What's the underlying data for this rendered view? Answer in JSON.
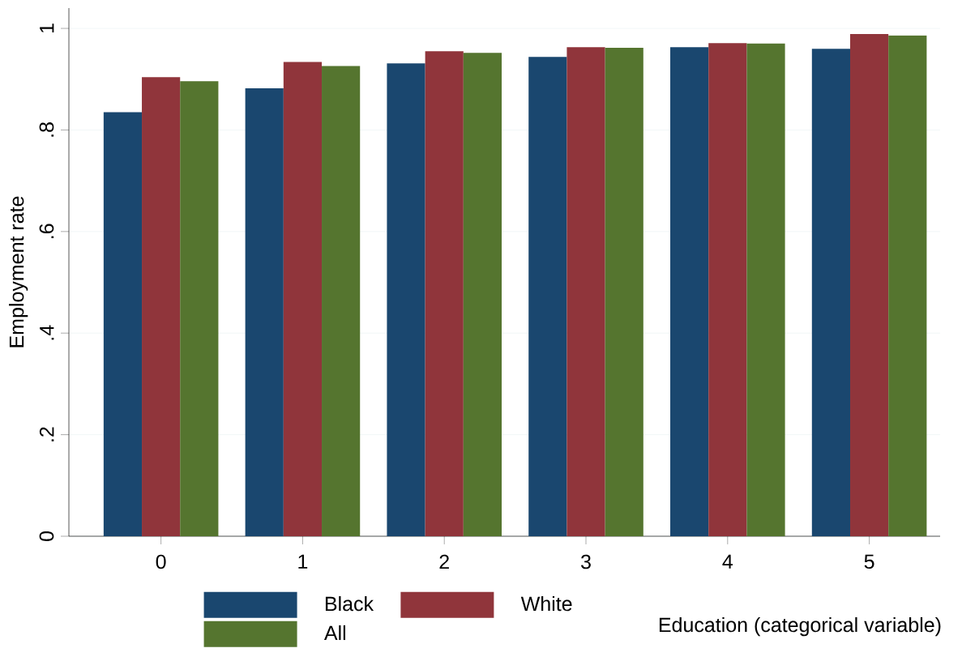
{
  "chart_data": {
    "type": "bar",
    "ylabel": "Employment rate",
    "xlabel": "Education (categorical variable)",
    "categories": [
      "0",
      "1",
      "2",
      "3",
      "4",
      "5"
    ],
    "series": [
      {
        "name": "Black",
        "color": "#1a476f",
        "values": [
          0.835,
          0.882,
          0.931,
          0.944,
          0.963,
          0.96
        ]
      },
      {
        "name": "White",
        "color": "#90353b",
        "values": [
          0.904,
          0.934,
          0.955,
          0.963,
          0.971,
          0.989
        ]
      },
      {
        "name": "All",
        "color": "#55752f",
        "values": [
          0.896,
          0.926,
          0.952,
          0.962,
          0.97,
          0.986
        ]
      }
    ],
    "ylim": [
      0,
      1.04
    ],
    "yticks": [
      0,
      {
        "value": 0.2,
        "label": ".2"
      },
      {
        "value": 0.4,
        "label": ".4"
      },
      {
        "value": 0.6,
        "label": ".6"
      },
      {
        "value": 0.8,
        "label": ".8"
      },
      1
    ],
    "grid": "y",
    "legend": "bottom"
  }
}
